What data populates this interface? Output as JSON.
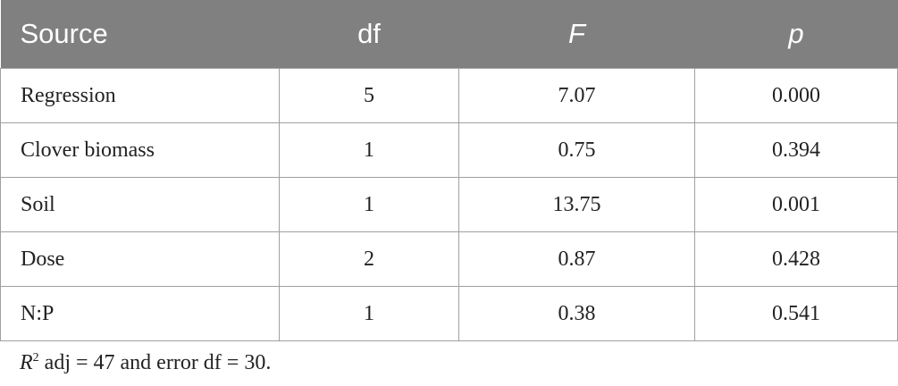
{
  "table": {
    "header": [
      "Source",
      "df",
      "F",
      "p"
    ],
    "rows": [
      [
        "Regression",
        "5",
        "7.07",
        "0.000"
      ],
      [
        "Clover biomass",
        "1",
        "0.75",
        "0.394"
      ],
      [
        "Soil",
        "1",
        "13.75",
        "0.001"
      ],
      [
        "Dose",
        "2",
        "0.87",
        "0.428"
      ],
      [
        "N:P",
        "1",
        "0.38",
        "0.541"
      ]
    ]
  },
  "footnote": {
    "symbol": "R",
    "superscript": "2",
    "text": " adj = 47 and error df = 30."
  }
}
